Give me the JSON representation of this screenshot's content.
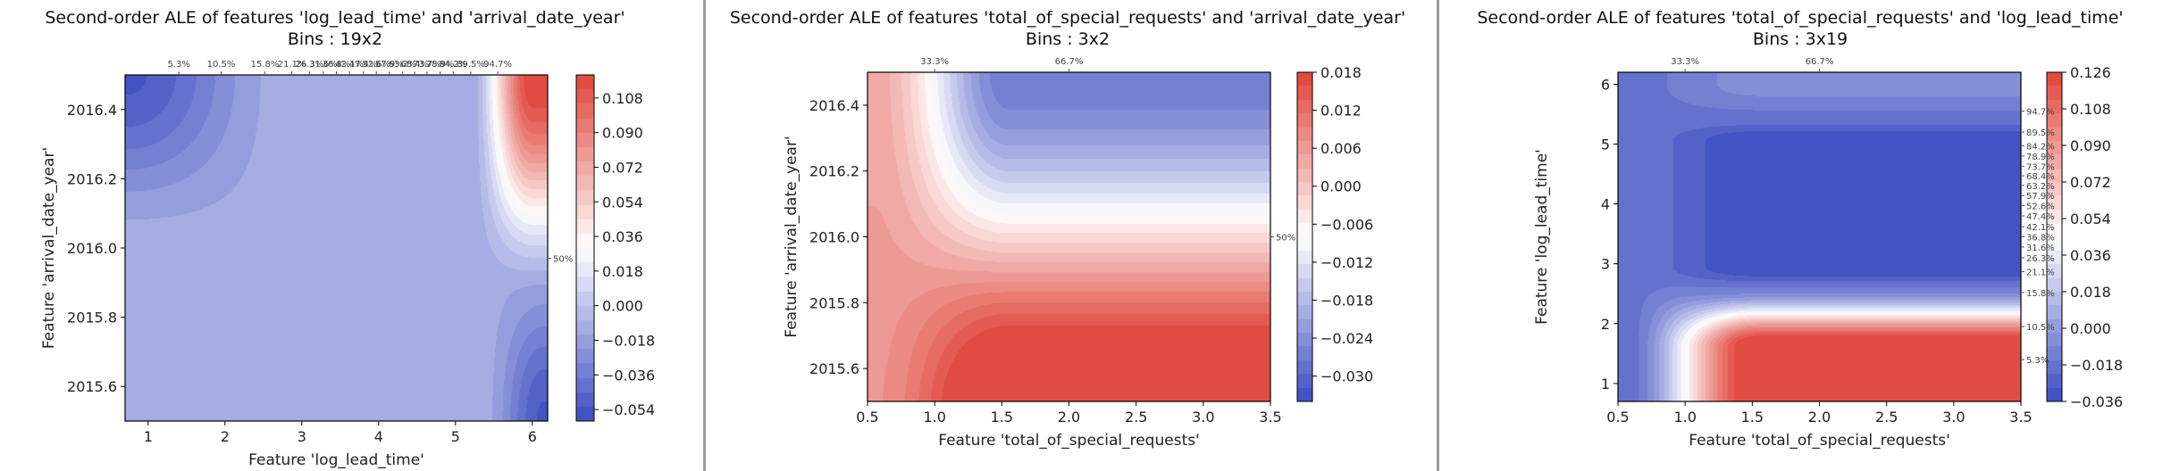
{
  "chart_data": [
    {
      "type": "heatmap",
      "title": "Second-order ALE of features 'log_lead_time' and 'arrival_date_year'",
      "subtitle": "Bins : 19x2",
      "xlabel": "Feature 'log_lead_time'",
      "ylabel": "Feature 'arrival_date_year'",
      "xlim": [
        0.7,
        6.2
      ],
      "ylim": [
        2015.5,
        2016.5
      ],
      "xticks": [
        1,
        2,
        3,
        4,
        5,
        6
      ],
      "xtick_labels": [
        "1",
        "2",
        "3",
        "4",
        "5",
        "6"
      ],
      "yticks": [
        2015.6,
        2015.8,
        2016.0,
        2016.2,
        2016.4
      ],
      "ytick_labels": [
        "2015.6",
        "2015.8",
        "2016.0",
        "2016.2",
        "2016.4"
      ],
      "top_percentiles": [
        {
          "label": "5.3%",
          "x": 1.4
        },
        {
          "label": "10.5%",
          "x": 1.95
        },
        {
          "label": "15.8%",
          "x": 2.52
        },
        {
          "label": "21.1%",
          "x": 2.87
        },
        {
          "label": "26.3%",
          "x": 3.1
        },
        {
          "label": "31.6%",
          "x": 3.28
        },
        {
          "label": "36.8%",
          "x": 3.45
        },
        {
          "label": "42.1%",
          "x": 3.62
        },
        {
          "label": "47.4%",
          "x": 3.8
        },
        {
          "label": "52.6%",
          "x": 3.97
        },
        {
          "label": "57.9%",
          "x": 4.14
        },
        {
          "label": "63.2%",
          "x": 4.31
        },
        {
          "label": "68.4%",
          "x": 4.47
        },
        {
          "label": "73.7%",
          "x": 4.63
        },
        {
          "label": "78.9%",
          "x": 4.8
        },
        {
          "label": "84.2%",
          "x": 4.97
        },
        {
          "label": "89.5%",
          "x": 5.2
        },
        {
          "label": "94.7%",
          "x": 5.55
        }
      ],
      "right_percentiles": [
        {
          "label": "50%",
          "y": 2015.97
        }
      ],
      "colorbar": {
        "min": -0.06,
        "max": 0.12,
        "ticks": [
          -0.054,
          -0.036,
          -0.018,
          0.0,
          0.018,
          0.036,
          0.054,
          0.072,
          0.09,
          0.108
        ],
        "tick_labels": [
          "−0.054",
          "−0.036",
          "−0.018",
          "0.000",
          "0.018",
          "0.036",
          "0.054",
          "0.072",
          "0.090",
          "0.108"
        ]
      },
      "field_description": "ALE near -0.012 over most of the domain; strongly negative (about -0.054) at low lead time / 2016.5 and at high lead time / 2015.5; strongly positive (about 0.12) at high lead time / 2016.5"
    },
    {
      "type": "heatmap",
      "title": "Second-order ALE of features 'total_of_special_requests' and 'arrival_date_year'",
      "subtitle": "Bins : 3x2",
      "xlabel": "Feature 'total_of_special_requests'",
      "ylabel": "Feature 'arrival_date_year'",
      "xlim": [
        0.5,
        3.5
      ],
      "ylim": [
        2015.5,
        2016.5
      ],
      "xticks": [
        0.5,
        1.0,
        1.5,
        2.0,
        2.5,
        3.0,
        3.5
      ],
      "xtick_labels": [
        "0.5",
        "1.0",
        "1.5",
        "2.0",
        "2.5",
        "3.0",
        "3.5"
      ],
      "yticks": [
        2015.6,
        2015.8,
        2016.0,
        2016.2,
        2016.4
      ],
      "ytick_labels": [
        "2015.6",
        "2015.8",
        "2016.0",
        "2016.2",
        "2016.4"
      ],
      "top_percentiles": [
        {
          "label": "33.3%",
          "x": 1.0
        },
        {
          "label": "66.7%",
          "x": 2.0
        }
      ],
      "right_percentiles": [
        {
          "label": "50%",
          "y": 2016.0
        }
      ],
      "colorbar": {
        "min": -0.034,
        "max": 0.018,
        "ticks": [
          -0.03,
          -0.024,
          -0.018,
          -0.012,
          -0.006,
          0.0,
          0.006,
          0.012,
          0.018
        ],
        "tick_labels": [
          "−0.030",
          "−0.024",
          "−0.018",
          "−0.012",
          "−0.006",
          "0.000",
          "0.006",
          "0.012",
          "0.018"
        ]
      },
      "field_description": "positive (about 0.018) for 2015.5 with 1.5 or more special requests; negative (about -0.034) for 2016.5 with 1.5 or more special requests; mild positive at 0.5 requests"
    },
    {
      "type": "heatmap",
      "title": "Second-order ALE of features 'total_of_special_requests' and 'log_lead_time'",
      "subtitle": "Bins : 3x19",
      "xlabel": "Feature 'total_of_special_requests'",
      "ylabel": "Feature 'log_lead_time'",
      "xlim": [
        0.5,
        3.5
      ],
      "ylim": [
        0.7,
        6.2
      ],
      "xticks": [
        0.5,
        1.0,
        1.5,
        2.0,
        2.5,
        3.0,
        3.5
      ],
      "xtick_labels": [
        "0.5",
        "1.0",
        "1.5",
        "2.0",
        "2.5",
        "3.0",
        "3.5"
      ],
      "yticks": [
        1,
        2,
        3,
        4,
        5,
        6
      ],
      "ytick_labels": [
        "1",
        "2",
        "3",
        "4",
        "5",
        "6"
      ],
      "top_percentiles": [
        {
          "label": "33.3%",
          "x": 1.0
        },
        {
          "label": "66.7%",
          "x": 2.0
        }
      ],
      "right_percentiles": [
        {
          "label": "5.3%",
          "y": 1.4
        },
        {
          "label": "10.5%",
          "y": 1.95
        },
        {
          "label": "15.8%",
          "y": 2.52
        },
        {
          "label": "21.1%",
          "y": 2.87
        },
        {
          "label": "26.3%",
          "y": 3.1
        },
        {
          "label": "31.6%",
          "y": 3.28
        },
        {
          "label": "36.8%",
          "y": 3.45
        },
        {
          "label": "42.1%",
          "y": 3.62
        },
        {
          "label": "47.4%",
          "y": 3.8
        },
        {
          "label": "52.6%",
          "y": 3.97
        },
        {
          "label": "57.9%",
          "y": 4.14
        },
        {
          "label": "63.2%",
          "y": 4.31
        },
        {
          "label": "68.4%",
          "y": 4.47
        },
        {
          "label": "73.7%",
          "y": 4.63
        },
        {
          "label": "78.9%",
          "y": 4.8
        },
        {
          "label": "84.2%",
          "y": 4.97
        },
        {
          "label": "89.5%",
          "y": 5.2
        },
        {
          "label": "94.7%",
          "y": 5.55
        }
      ],
      "colorbar": {
        "min": -0.036,
        "max": 0.126,
        "ticks": [
          -0.036,
          -0.018,
          0.0,
          0.018,
          0.036,
          0.054,
          0.072,
          0.09,
          0.108,
          0.126
        ],
        "tick_labels": [
          "−0.036",
          "−0.018",
          "0.000",
          "0.018",
          "0.036",
          "0.054",
          "0.072",
          "0.090",
          "0.108",
          "0.126"
        ]
      },
      "field_description": "strongly positive (about 0.126) for 1.5 or more special requests with log lead time below 1.8; strongly negative (about -0.036) for 1.5 or more special requests with log lead time 2.7 to 5.2; near -0.018 elsewhere"
    }
  ],
  "colors": {
    "cmap_low": "#3b4cc0",
    "cmap_mid": "#ffffff",
    "cmap_high": "#e0443a",
    "divider": "#9a9a9a"
  }
}
